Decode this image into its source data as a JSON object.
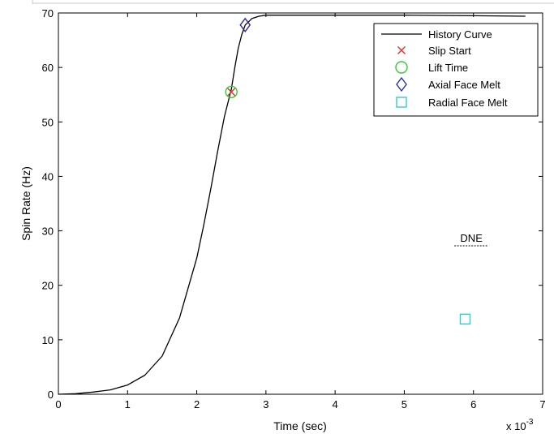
{
  "chart_data": {
    "type": "line",
    "title": "",
    "xlabel": "Time (sec)",
    "ylabel": "Spin Rate (Hz)",
    "x_multiplier_label": "x 10",
    "x_multiplier_exp": "-3",
    "xlim": [
      0,
      7
    ],
    "ylim": [
      0,
      70
    ],
    "xticks": [
      0,
      1,
      2,
      3,
      4,
      5,
      6,
      7
    ],
    "yticks": [
      0,
      10,
      20,
      30,
      40,
      50,
      60,
      70
    ],
    "grid": false,
    "legend_position": "top-right",
    "series": [
      {
        "name": "History Curve",
        "style": "line",
        "color": "#000000",
        "x": [
          0,
          0.25,
          0.5,
          0.75,
          1.0,
          1.25,
          1.5,
          1.75,
          2.0,
          2.1,
          2.2,
          2.3,
          2.4,
          2.5,
          2.55,
          2.6,
          2.65,
          2.7,
          2.8,
          2.9,
          3.0,
          3.5,
          4.0,
          5.0,
          6.0,
          6.75
        ],
        "y": [
          0,
          0.1,
          0.4,
          0.8,
          1.7,
          3.5,
          7.0,
          14.0,
          25.0,
          31.0,
          37.5,
          44.5,
          51.0,
          56.0,
          60.0,
          63.5,
          66.0,
          67.8,
          69.0,
          69.4,
          69.6,
          69.6,
          69.6,
          69.6,
          69.5,
          69.4
        ]
      },
      {
        "name": "Slip Start",
        "style": "marker",
        "marker": "x",
        "color": "#e03030",
        "x": [
          2.5
        ],
        "y": [
          55.5
        ]
      },
      {
        "name": "Lift Time",
        "style": "marker",
        "marker": "circle",
        "color": "#33cc33",
        "x": [
          2.5
        ],
        "y": [
          55.5
        ]
      },
      {
        "name": "Axial Face Melt",
        "style": "marker",
        "marker": "diamond",
        "color": "#2e2e9e",
        "x": [
          2.7
        ],
        "y": [
          67.8
        ]
      },
      {
        "name": "Radial Face Melt",
        "style": "marker",
        "marker": "square",
        "color": "#33cccc",
        "x": [
          5.88
        ],
        "y": [
          13.8
        ]
      }
    ],
    "annotations": [
      {
        "text": "DNE",
        "x": 5.97,
        "y": 28.0
      }
    ]
  }
}
